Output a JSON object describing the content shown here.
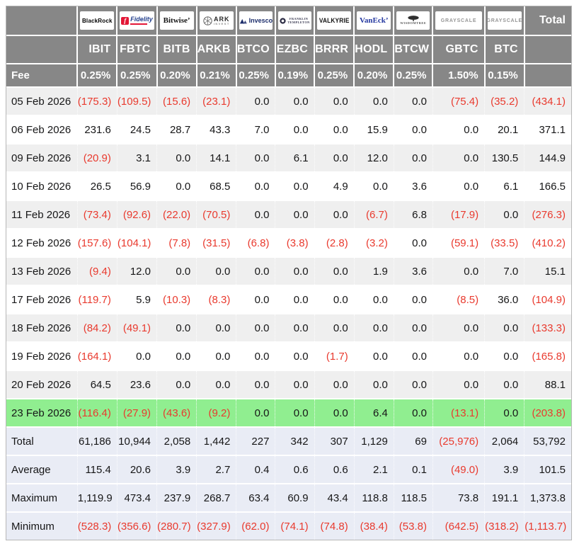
{
  "colors": {
    "header_bg": "#878787",
    "header_text": "#ffffff",
    "row_bg": "#ffffff",
    "row_alt_bg": "#efefef",
    "highlight_bg": "#90ee90",
    "summary_bg": "#e9ecf5",
    "negative": "#e93a2e",
    "text": "#161617"
  },
  "chart_data": {
    "type": "table",
    "corner_label": "",
    "fee_label": "Fee",
    "total_label": "Total",
    "providers": [
      {
        "logo": "blackrock",
        "name": "BlackRock",
        "ticker": "IBIT",
        "fee": "0.25%"
      },
      {
        "logo": "fidelity",
        "name": "Fidelity",
        "ticker": "FBTC",
        "fee": "0.25%"
      },
      {
        "logo": "bitwise",
        "name": "Bitwise",
        "ticker": "BITB",
        "fee": "0.20%"
      },
      {
        "logo": "ark",
        "name": "ARK Invest",
        "ticker": "ARKB",
        "fee": "0.21%"
      },
      {
        "logo": "invesco",
        "name": "Invesco",
        "ticker": "BTCO",
        "fee": "0.25%"
      },
      {
        "logo": "franklin",
        "name": "Franklin Templeton",
        "ticker": "EZBC",
        "fee": "0.19%"
      },
      {
        "logo": "valkyrie",
        "name": "Valkyrie",
        "ticker": "BRRR",
        "fee": "0.25%"
      },
      {
        "logo": "vaneck",
        "name": "VanEck",
        "ticker": "HODL",
        "fee": "0.20%"
      },
      {
        "logo": "wisdomtree",
        "name": "WisdomTree",
        "ticker": "BTCW",
        "fee": "0.25%"
      },
      {
        "logo": "grayscale",
        "name": "Grayscale",
        "ticker": "GBTC",
        "fee": "1.50%"
      },
      {
        "logo": "grayscale",
        "name": "Grayscale",
        "ticker": "BTC",
        "fee": "0.15%"
      }
    ],
    "rows": [
      {
        "date": "05 Feb 2026",
        "highlight": false,
        "values": [
          "(175.3)",
          "(109.5)",
          "(15.6)",
          "(23.1)",
          "0.0",
          "0.0",
          "0.0",
          "0.0",
          "0.0",
          "(75.4)",
          "(35.2)"
        ],
        "total": "(434.1)"
      },
      {
        "date": "06 Feb 2026",
        "highlight": false,
        "values": [
          "231.6",
          "24.5",
          "28.7",
          "43.3",
          "7.0",
          "0.0",
          "0.0",
          "15.9",
          "0.0",
          "0.0",
          "20.1"
        ],
        "total": "371.1"
      },
      {
        "date": "09 Feb 2026",
        "highlight": false,
        "values": [
          "(20.9)",
          "3.1",
          "0.0",
          "14.1",
          "0.0",
          "6.1",
          "0.0",
          "12.0",
          "0.0",
          "0.0",
          "130.5"
        ],
        "total": "144.9"
      },
      {
        "date": "10 Feb 2026",
        "highlight": false,
        "values": [
          "26.5",
          "56.9",
          "0.0",
          "68.5",
          "0.0",
          "0.0",
          "4.9",
          "0.0",
          "3.6",
          "0.0",
          "6.1"
        ],
        "total": "166.5"
      },
      {
        "date": "11 Feb 2026",
        "highlight": false,
        "values": [
          "(73.4)",
          "(92.6)",
          "(22.0)",
          "(70.5)",
          "0.0",
          "0.0",
          "0.0",
          "(6.7)",
          "6.8",
          "(17.9)",
          "0.0"
        ],
        "total": "(276.3)"
      },
      {
        "date": "12 Feb 2026",
        "highlight": false,
        "values": [
          "(157.6)",
          "(104.1)",
          "(7.8)",
          "(31.5)",
          "(6.8)",
          "(3.8)",
          "(2.8)",
          "(3.2)",
          "0.0",
          "(59.1)",
          "(33.5)"
        ],
        "total": "(410.2)"
      },
      {
        "date": "13 Feb 2026",
        "highlight": false,
        "values": [
          "(9.4)",
          "12.0",
          "0.0",
          "0.0",
          "0.0",
          "0.0",
          "0.0",
          "1.9",
          "3.6",
          "0.0",
          "7.0"
        ],
        "total": "15.1"
      },
      {
        "date": "17 Feb 2026",
        "highlight": false,
        "values": [
          "(119.7)",
          "5.9",
          "(10.3)",
          "(8.3)",
          "0.0",
          "0.0",
          "0.0",
          "0.0",
          "0.0",
          "(8.5)",
          "36.0"
        ],
        "total": "(104.9)"
      },
      {
        "date": "18 Feb 2026",
        "highlight": false,
        "values": [
          "(84.2)",
          "(49.1)",
          "0.0",
          "0.0",
          "0.0",
          "0.0",
          "0.0",
          "0.0",
          "0.0",
          "0.0",
          "0.0"
        ],
        "total": "(133.3)"
      },
      {
        "date": "19 Feb 2026",
        "highlight": false,
        "values": [
          "(164.1)",
          "0.0",
          "0.0",
          "0.0",
          "0.0",
          "0.0",
          "(1.7)",
          "0.0",
          "0.0",
          "0.0",
          "0.0"
        ],
        "total": "(165.8)"
      },
      {
        "date": "20 Feb 2026",
        "highlight": false,
        "values": [
          "64.5",
          "23.6",
          "0.0",
          "0.0",
          "0.0",
          "0.0",
          "0.0",
          "0.0",
          "0.0",
          "0.0",
          "0.0"
        ],
        "total": "88.1"
      },
      {
        "date": "23 Feb 2026",
        "highlight": true,
        "values": [
          "(116.4)",
          "(27.9)",
          "(43.6)",
          "(9.2)",
          "0.0",
          "0.0",
          "0.0",
          "6.4",
          "0.0",
          "(13.1)",
          "0.0"
        ],
        "total": "(203.8)"
      }
    ],
    "summary_rows": [
      {
        "label": "Total",
        "values": [
          "61,186",
          "10,944",
          "2,058",
          "1,442",
          "227",
          "342",
          "307",
          "1,129",
          "69",
          "(25,976)",
          "2,064"
        ],
        "total": "53,792"
      },
      {
        "label": "Average",
        "values": [
          "115.4",
          "20.6",
          "3.9",
          "2.7",
          "0.4",
          "0.6",
          "0.6",
          "2.1",
          "0.1",
          "(49.0)",
          "3.9"
        ],
        "total": "101.5"
      },
      {
        "label": "Maximum",
        "values": [
          "1,119.9",
          "473.4",
          "237.9",
          "268.7",
          "63.4",
          "60.9",
          "43.4",
          "118.8",
          "118.5",
          "73.8",
          "191.1"
        ],
        "total": "1,373.8"
      },
      {
        "label": "Minimum",
        "values": [
          "(528.3)",
          "(356.6)",
          "(280.7)",
          "(327.9)",
          "(62.0)",
          "(74.1)",
          "(74.8)",
          "(38.4)",
          "(53.8)",
          "(642.5)",
          "(318.2)"
        ],
        "total": "(1,113.7)"
      }
    ]
  }
}
